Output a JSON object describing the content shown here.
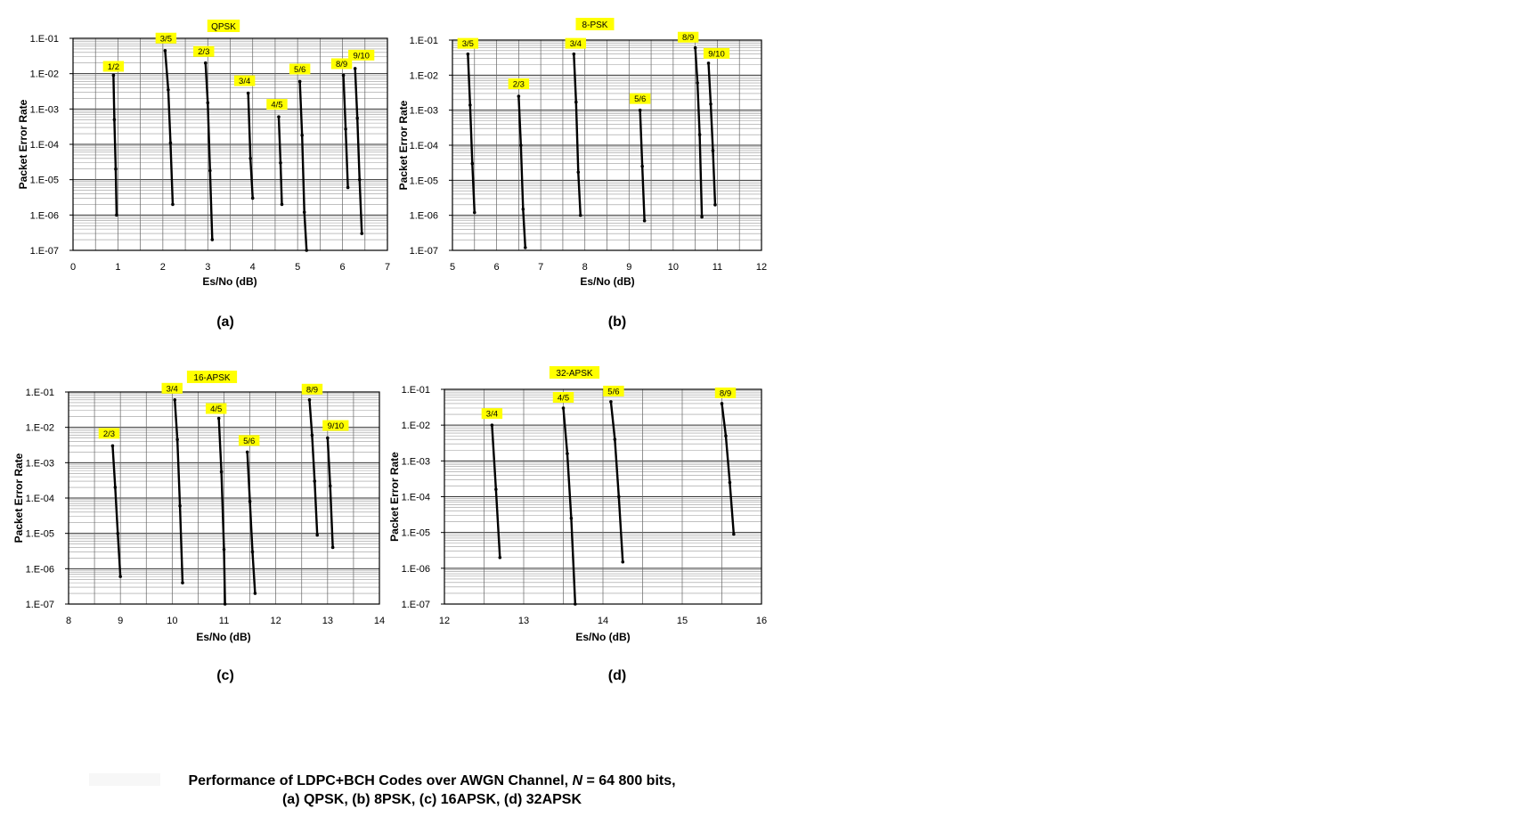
{
  "caption": {
    "line1_pre": "Performance of LDPC+BCH Codes over AWGN Channel, ",
    "line1_italic": "N",
    "line1_post": " = 64 800 bits,",
    "line2": "(a) QPSK, (b) 8PSK, (c) 16APSK, (d) 32APSK"
  },
  "chart_data": [
    {
      "type": "line",
      "panel_label": "(a)",
      "title": "QPSK",
      "xlabel": "Es/No (dB)",
      "ylabel": "Packet Error Rate",
      "xlim": [
        0,
        7
      ],
      "ylim": [
        1e-07,
        0.1
      ],
      "yscale": "log",
      "x_ticks": [
        "0",
        "1",
        "2",
        "3",
        "4",
        "5",
        "6",
        "7"
      ],
      "y_ticks": [
        "1.E-07",
        "1.E-06",
        "1.E-05",
        "1.E-04",
        "1.E-03",
        "1.E-02",
        "1.E-01"
      ],
      "grid": "dense",
      "series": [
        {
          "name": "1/2",
          "x": [
            0.9,
            0.92,
            0.95,
            0.97
          ],
          "y": [
            0.009,
            0.0005,
            2e-05,
            1e-06
          ]
        },
        {
          "name": "3/5",
          "x": [
            2.05,
            2.12,
            2.17,
            2.22
          ],
          "y": [
            0.045,
            0.0035,
            0.00011,
            2e-06
          ]
        },
        {
          "name": "2/3",
          "x": [
            2.95,
            3.0,
            3.05,
            3.1
          ],
          "y": [
            0.02,
            0.0015,
            1.8e-05,
            2e-07
          ]
        },
        {
          "name": "3/4",
          "x": [
            3.9,
            3.95,
            4.0
          ],
          "y": [
            0.0028,
            4e-05,
            3e-06
          ]
        },
        {
          "name": "4/5",
          "x": [
            4.58,
            4.62,
            4.65
          ],
          "y": [
            0.0006,
            3e-05,
            2e-06
          ]
        },
        {
          "name": "5/6",
          "x": [
            5.05,
            5.1,
            5.15,
            5.2
          ],
          "y": [
            0.006,
            0.00018,
            1.2e-06,
            1e-07
          ]
        },
        {
          "name": "8/9",
          "x": [
            6.02,
            6.07,
            6.12
          ],
          "y": [
            0.009,
            0.00027,
            6e-06
          ]
        },
        {
          "name": "9/10",
          "x": [
            6.28,
            6.33,
            6.38,
            6.43
          ],
          "y": [
            0.014,
            0.00055,
            1e-05,
            3e-07
          ]
        }
      ]
    },
    {
      "type": "line",
      "panel_label": "(b)",
      "title": "8-PSK",
      "xlabel": "Es/No (dB)",
      "ylabel": "Packet Error Rate",
      "xlim": [
        5,
        12
      ],
      "ylim": [
        1e-07,
        0.1
      ],
      "yscale": "log",
      "x_ticks": [
        "5",
        "6",
        "7",
        "8",
        "9",
        "10",
        "11",
        "12"
      ],
      "y_ticks": [
        "1.E-07",
        "1.E-06",
        "1.E-05",
        "1.E-04",
        "1.E-03",
        "1.E-02",
        "1.E-01"
      ],
      "grid": "dense",
      "series": [
        {
          "name": "3/5",
          "x": [
            5.35,
            5.4,
            5.45,
            5.5
          ],
          "y": [
            0.04,
            0.0014,
            3e-05,
            1.2e-06
          ]
        },
        {
          "name": "2/3",
          "x": [
            6.5,
            6.55,
            6.6,
            6.65
          ],
          "y": [
            0.0025,
            0.0001,
            1.5e-06,
            1.2e-07
          ]
        },
        {
          "name": "3/4",
          "x": [
            7.75,
            7.8,
            7.85,
            7.9
          ],
          "y": [
            0.04,
            0.0017,
            1.7e-05,
            1e-06
          ]
        },
        {
          "name": "5/6",
          "x": [
            9.25,
            9.3,
            9.35
          ],
          "y": [
            0.001,
            2.5e-05,
            7e-07
          ]
        },
        {
          "name": "8/9",
          "x": [
            10.5,
            10.55,
            10.6,
            10.65
          ],
          "y": [
            0.06,
            0.006,
            0.0002,
            9e-07
          ]
        },
        {
          "name": "9/10",
          "x": [
            10.8,
            10.85,
            10.9,
            10.95
          ],
          "y": [
            0.022,
            0.0015,
            7e-05,
            2e-06
          ]
        }
      ]
    },
    {
      "type": "line",
      "panel_label": "(c)",
      "title": "16-APSK",
      "xlabel": "Es/No (dB)",
      "ylabel": "Packet Error Rate",
      "xlim": [
        8,
        14
      ],
      "ylim": [
        1e-07,
        0.1
      ],
      "yscale": "log",
      "x_ticks": [
        "8",
        "9",
        "10",
        "11",
        "12",
        "13",
        "14"
      ],
      "y_ticks": [
        "1.E-07",
        "1.E-06",
        "1.E-05",
        "1.E-04",
        "1.E-03",
        "1.E-02",
        "1.E-01"
      ],
      "grid": "dense",
      "series": [
        {
          "name": "2/3",
          "x": [
            8.85,
            8.9,
            8.95,
            9.0
          ],
          "y": [
            0.003,
            0.0002,
            1e-05,
            6e-07
          ]
        },
        {
          "name": "3/4",
          "x": [
            10.05,
            10.1,
            10.15,
            10.2
          ],
          "y": [
            0.06,
            0.0045,
            6e-05,
            4e-07
          ]
        },
        {
          "name": "4/5",
          "x": [
            10.9,
            10.95,
            11.0,
            11.02
          ],
          "y": [
            0.018,
            0.00055,
            3.5e-06,
            1e-07
          ]
        },
        {
          "name": "5/6",
          "x": [
            11.45,
            11.5,
            11.55,
            11.6
          ],
          "y": [
            0.002,
            8e-05,
            3e-06,
            2e-07
          ]
        },
        {
          "name": "8/9",
          "x": [
            12.65,
            12.7,
            12.75,
            12.8
          ],
          "y": [
            0.06,
            0.006,
            0.0003,
            9e-06
          ]
        },
        {
          "name": "9/10",
          "x": [
            13.0,
            13.05,
            13.1
          ],
          "y": [
            0.005,
            0.00022,
            4e-06
          ]
        }
      ]
    },
    {
      "type": "line",
      "panel_label": "(d)",
      "title": "32-APSK",
      "xlabel": "Es/No (dB)",
      "ylabel": "Packet Error Rate",
      "xlim": [
        12,
        16
      ],
      "ylim": [
        1e-07,
        0.1
      ],
      "yscale": "log",
      "x_ticks": [
        "12",
        "13",
        "14",
        "15",
        "16"
      ],
      "y_ticks": [
        "1.E-07",
        "1.E-06",
        "1.E-05",
        "1.E-04",
        "1.E-03",
        "1.E-02",
        "1.E-01"
      ],
      "grid": "dense",
      "series": [
        {
          "name": "3/4",
          "x": [
            12.6,
            12.65,
            12.7
          ],
          "y": [
            0.01,
            0.00016,
            2e-06
          ]
        },
        {
          "name": "4/5",
          "x": [
            13.5,
            13.55,
            13.6,
            13.65
          ],
          "y": [
            0.03,
            0.0016,
            2.5e-05,
            1e-07
          ]
        },
        {
          "name": "5/6",
          "x": [
            14.1,
            14.15,
            14.2,
            14.25
          ],
          "y": [
            0.045,
            0.004,
            0.0001,
            1.5e-06
          ]
        },
        {
          "name": "8/9",
          "x": [
            15.5,
            15.55,
            15.6,
            15.65
          ],
          "y": [
            0.04,
            0.005,
            0.00025,
            9e-06
          ]
        }
      ]
    }
  ]
}
